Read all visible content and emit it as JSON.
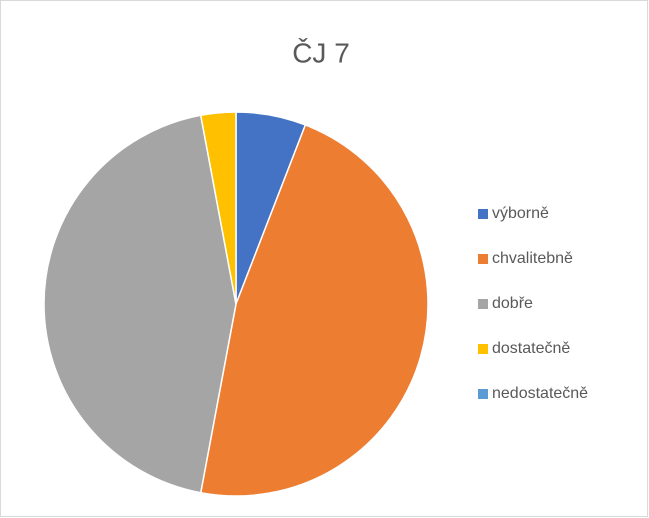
{
  "chart_data": {
    "type": "pie",
    "title": "ČJ 7",
    "categories": [
      "výborně",
      "chvalitebně",
      "dobře",
      "dostatečně",
      "nedostatečně"
    ],
    "values": [
      2,
      16,
      15,
      1,
      0
    ],
    "colors": [
      "#4472c4",
      "#ed7d31",
      "#a5a5a5",
      "#ffc000",
      "#5b9bd5"
    ],
    "legend": "right"
  }
}
